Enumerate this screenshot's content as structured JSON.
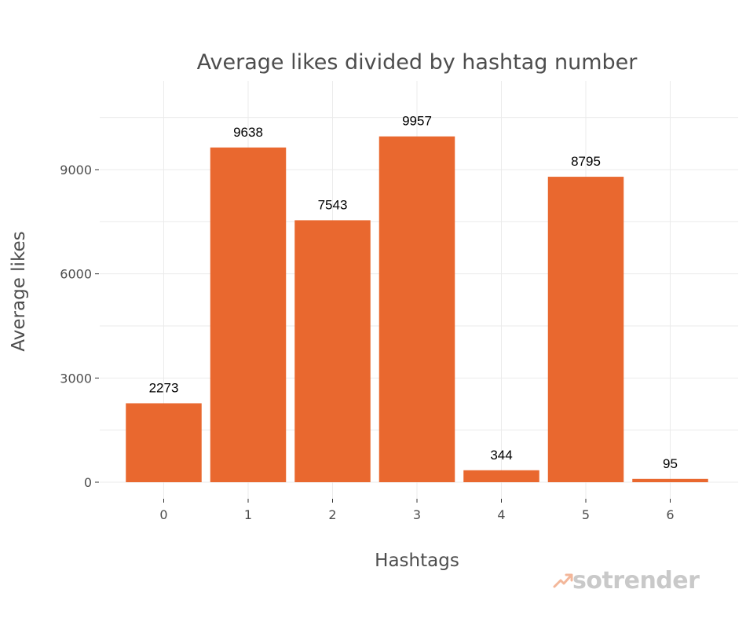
{
  "chart_data": {
    "type": "bar",
    "title": "Average likes divided by hashtag number",
    "xlabel": "Hashtags",
    "ylabel": "Average likes",
    "categories": [
      "0",
      "1",
      "2",
      "3",
      "4",
      "5",
      "6"
    ],
    "values": [
      2273,
      9638,
      7543,
      9957,
      344,
      8795,
      95
    ],
    "data_labels": [
      "2273",
      "9638",
      "7543",
      "9957",
      "344",
      "8795",
      "95"
    ],
    "yticks": [
      0,
      3000,
      6000,
      9000
    ],
    "ytick_labels": [
      "0",
      "3000",
      "6000",
      "9000"
    ],
    "ylim": [
      0,
      11480
    ],
    "grid": true,
    "bar_color": "#e9682f"
  },
  "watermark": {
    "text": "sotrender",
    "color": "#c9c9c9",
    "icon": "trend-arrow-icon"
  }
}
